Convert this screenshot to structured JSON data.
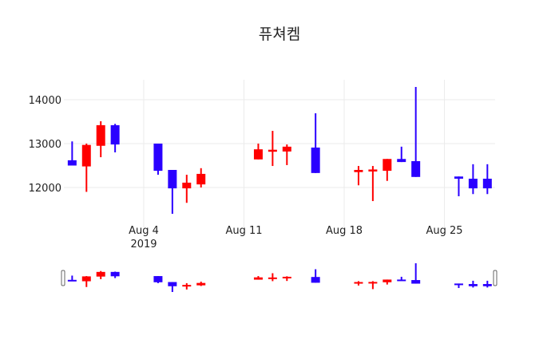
{
  "chart_data": {
    "type": "candlestick",
    "title": "퓨쳐켐",
    "xlabel": "",
    "ylabel": "",
    "ylim": [
      11200,
      14450
    ],
    "y_ticks": [
      12000,
      13000,
      14000
    ],
    "x_ticks": [
      {
        "date": "2019-08-04",
        "label": "Aug 4",
        "sublabel": "2019"
      },
      {
        "date": "2019-08-11",
        "label": "Aug 11",
        "sublabel": ""
      },
      {
        "date": "2019-08-18",
        "label": "Aug 18",
        "sublabel": ""
      },
      {
        "date": "2019-08-25",
        "label": "Aug 25",
        "sublabel": ""
      }
    ],
    "grid": true,
    "increasing_color": "#ff0000",
    "decreasing_color": "#2a00ff",
    "range_slider": true,
    "candles": [
      {
        "date": "2019-07-30",
        "open": 12620,
        "high": 13050,
        "low": 12500,
        "close": 12500
      },
      {
        "date": "2019-07-31",
        "open": 12480,
        "high": 13000,
        "low": 11900,
        "close": 12970
      },
      {
        "date": "2019-08-01",
        "open": 12950,
        "high": 13510,
        "low": 12690,
        "close": 13420
      },
      {
        "date": "2019-08-02",
        "open": 13420,
        "high": 13450,
        "low": 12800,
        "close": 12980
      },
      {
        "date": "2019-08-05",
        "open": 13000,
        "high": 13000,
        "low": 12290,
        "close": 12380
      },
      {
        "date": "2019-08-06",
        "open": 12400,
        "high": 12400,
        "low": 11400,
        "close": 11980
      },
      {
        "date": "2019-08-07",
        "open": 11980,
        "high": 12290,
        "low": 11650,
        "close": 12110
      },
      {
        "date": "2019-08-08",
        "open": 12070,
        "high": 12440,
        "low": 12000,
        "close": 12310
      },
      {
        "date": "2019-08-12",
        "open": 12640,
        "high": 13000,
        "low": 12640,
        "close": 12870
      },
      {
        "date": "2019-08-13",
        "open": 12840,
        "high": 13290,
        "low": 12490,
        "close": 12860
      },
      {
        "date": "2019-08-14",
        "open": 12820,
        "high": 12980,
        "low": 12510,
        "close": 12930
      },
      {
        "date": "2019-08-16",
        "open": 12910,
        "high": 13690,
        "low": 12330,
        "close": 12330
      },
      {
        "date": "2019-08-19",
        "open": 12350,
        "high": 12490,
        "low": 12050,
        "close": 12400
      },
      {
        "date": "2019-08-20",
        "open": 12380,
        "high": 12490,
        "low": 11690,
        "close": 12410
      },
      {
        "date": "2019-08-21",
        "open": 12380,
        "high": 12650,
        "low": 12150,
        "close": 12650
      },
      {
        "date": "2019-08-22",
        "open": 12650,
        "high": 12930,
        "low": 12580,
        "close": 12580
      },
      {
        "date": "2019-08-23",
        "open": 12600,
        "high": 14290,
        "low": 12240,
        "close": 12240
      },
      {
        "date": "2019-08-26",
        "open": 12250,
        "high": 12250,
        "low": 11800,
        "close": 12200
      },
      {
        "date": "2019-08-27",
        "open": 12200,
        "high": 12530,
        "low": 11850,
        "close": 11980
      },
      {
        "date": "2019-08-28",
        "open": 12200,
        "high": 12530,
        "low": 11850,
        "close": 11980
      }
    ]
  }
}
